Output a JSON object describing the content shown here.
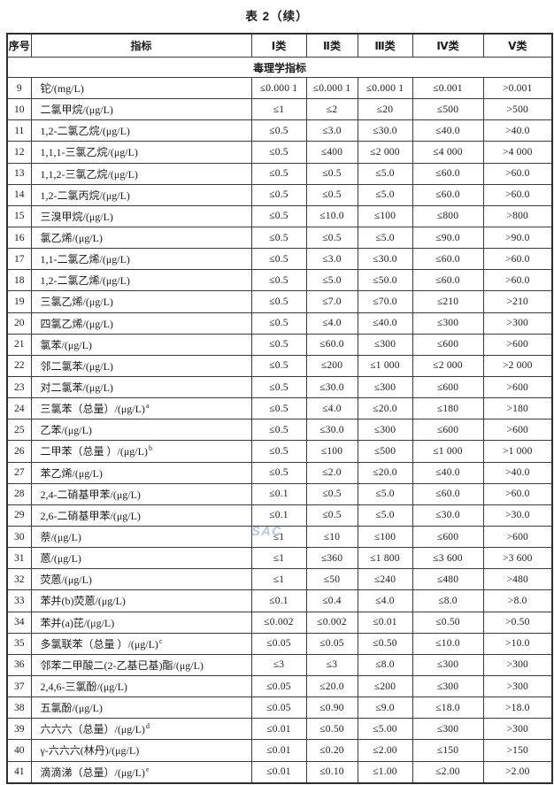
{
  "title": "表 2（续）",
  "watermark": "SAC",
  "table": {
    "headers": [
      "序号",
      "指标",
      "Ⅰ类",
      "Ⅱ类",
      "Ⅲ类",
      "Ⅳ类",
      "Ⅴ类"
    ],
    "section": "毒理学指标",
    "rows": [
      {
        "no": "9",
        "indicator": "铊/(mg/L)",
        "sup": "",
        "values": [
          "≤0.000 1",
          "≤0.000 1",
          "≤0.000 1",
          "≤0.001",
          ">0.001"
        ]
      },
      {
        "no": "10",
        "indicator": "二氯甲烷/(μg/L)",
        "sup": "",
        "values": [
          "≤1",
          "≤2",
          "≤20",
          "≤500",
          ">500"
        ]
      },
      {
        "no": "11",
        "indicator": "1,2-二氯乙烷/(μg/L)",
        "sup": "",
        "values": [
          "≤0.5",
          "≤3.0",
          "≤30.0",
          "≤40.0",
          ">40.0"
        ]
      },
      {
        "no": "12",
        "indicator": "1,1,1-三氯乙烷/(μg/L)",
        "sup": "",
        "values": [
          "≤0.5",
          "≤400",
          "≤2 000",
          "≤4 000",
          ">4 000"
        ]
      },
      {
        "no": "13",
        "indicator": "1,1,2-三氯乙烷/(μg/L)",
        "sup": "",
        "values": [
          "≤0.5",
          "≤0.5",
          "≤5.0",
          "≤60.0",
          ">60.0"
        ]
      },
      {
        "no": "14",
        "indicator": "1,2-二氯丙烷/(μg/L)",
        "sup": "",
        "values": [
          "≤0.5",
          "≤0.5",
          "≤5.0",
          "≤60.0",
          ">60.0"
        ]
      },
      {
        "no": "15",
        "indicator": "三溴甲烷/(μg/L)",
        "sup": "",
        "values": [
          "≤0.5",
          "≤10.0",
          "≤100",
          "≤800",
          ">800"
        ]
      },
      {
        "no": "16",
        "indicator": "氯乙烯/(μg/L)",
        "sup": "",
        "values": [
          "≤0.5",
          "≤0.5",
          "≤5.0",
          "≤90.0",
          ">90.0"
        ]
      },
      {
        "no": "17",
        "indicator": "1,1-二氯乙烯/(μg/L)",
        "sup": "",
        "values": [
          "≤0.5",
          "≤3.0",
          "≤30.0",
          "≤60.0",
          ">60.0"
        ]
      },
      {
        "no": "18",
        "indicator": "1,2-二氯乙烯/(μg/L)",
        "sup": "",
        "values": [
          "≤0.5",
          "≤5.0",
          "≤50.0",
          "≤60.0",
          ">60.0"
        ]
      },
      {
        "no": "19",
        "indicator": "三氯乙烯/(μg/L)",
        "sup": "",
        "values": [
          "≤0.5",
          "≤7.0",
          "≤70.0",
          "≤210",
          ">210"
        ]
      },
      {
        "no": "20",
        "indicator": "四氯乙烯/(μg/L)",
        "sup": "",
        "values": [
          "≤0.5",
          "≤4.0",
          "≤40.0",
          "≤300",
          ">300"
        ]
      },
      {
        "no": "21",
        "indicator": "氯苯/(μg/L)",
        "sup": "",
        "values": [
          "≤0.5",
          "≤60.0",
          "≤300",
          "≤600",
          ">600"
        ]
      },
      {
        "no": "22",
        "indicator": "邻二氯苯/(μg/L)",
        "sup": "",
        "values": [
          "≤0.5",
          "≤200",
          "≤1 000",
          "≤2 000",
          ">2 000"
        ]
      },
      {
        "no": "23",
        "indicator": "对二氯苯/(μg/L)",
        "sup": "",
        "values": [
          "≤0.5",
          "≤30.0",
          "≤300",
          "≤600",
          ">600"
        ]
      },
      {
        "no": "24",
        "indicator": "三氯苯（总量）/(μg/L)",
        "sup": "a",
        "values": [
          "≤0.5",
          "≤4.0",
          "≤20.0",
          "≤180",
          ">180"
        ]
      },
      {
        "no": "25",
        "indicator": "乙苯/(μg/L)",
        "sup": "",
        "values": [
          "≤0.5",
          "≤30.0",
          "≤300",
          "≤600",
          ">600"
        ]
      },
      {
        "no": "26",
        "indicator": "二甲苯（总量 ）/(μg/L)",
        "sup": "b",
        "values": [
          "≤0.5",
          "≤100",
          "≤500",
          "≤1 000",
          ">1 000"
        ]
      },
      {
        "no": "27",
        "indicator": "苯乙烯/(μg/L)",
        "sup": "",
        "values": [
          "≤0.5",
          "≤2.0",
          "≤20.0",
          "≤40.0",
          ">40.0"
        ]
      },
      {
        "no": "28",
        "indicator": "2,4-二硝基甲苯/(μg/L)",
        "sup": "",
        "values": [
          "≤0.1",
          "≤0.5",
          "≤5.0",
          "≤60.0",
          ">60.0"
        ]
      },
      {
        "no": "29",
        "indicator": "2,6-二硝基甲苯/(μg/L)",
        "sup": "",
        "values": [
          "≤0.1",
          "≤0.5",
          "≤5.0",
          "≤30.0",
          ">30.0"
        ]
      },
      {
        "no": "30",
        "indicator": "萘/(μg/L)",
        "sup": "",
        "values": [
          "≤1",
          "≤10",
          "≤100",
          "≤600",
          ">600"
        ]
      },
      {
        "no": "31",
        "indicator": "蒽/(μg/L)",
        "sup": "",
        "values": [
          "≤1",
          "≤360",
          "≤1 800",
          "≤3 600",
          ">3 600"
        ]
      },
      {
        "no": "32",
        "indicator": "荧蒽/(μg/L)",
        "sup": "",
        "values": [
          "≤1",
          "≤50",
          "≤240",
          "≤480",
          ">480"
        ]
      },
      {
        "no": "33",
        "indicator": "苯并(b)荧蒽/(μg/L)",
        "sup": "",
        "values": [
          "≤0.1",
          "≤0.4",
          "≤4.0",
          "≤8.0",
          ">8.0"
        ]
      },
      {
        "no": "34",
        "indicator": "苯并(a)芘/(μg/L)",
        "sup": "",
        "values": [
          "≤0.002",
          "≤0.002",
          "≤0.01",
          "≤0.50",
          ">0.50"
        ]
      },
      {
        "no": "35",
        "indicator": "多氯联苯（总量 ）/(μg/L)",
        "sup": "c",
        "values": [
          "≤0.05",
          "≤0.05",
          "≤0.50",
          "≤10.0",
          ">10.0"
        ]
      },
      {
        "no": "36",
        "indicator": "邻苯二甲酸二(2-乙基已基)酯/(μg/L)",
        "sup": "",
        "values": [
          "≤3",
          "≤3",
          "≤8.0",
          "≤300",
          ">300"
        ]
      },
      {
        "no": "37",
        "indicator": "2,4,6-三氯酚/(μg/L)",
        "sup": "",
        "values": [
          "≤0.05",
          "≤20.0",
          "≤200",
          "≤300",
          ">300"
        ]
      },
      {
        "no": "38",
        "indicator": "五氯酚/(μg/L)",
        "sup": "",
        "values": [
          "≤0.05",
          "≤0.90",
          "≤9.0",
          "≤18.0",
          ">18.0"
        ]
      },
      {
        "no": "39",
        "indicator": "六六六（总量）/(μg/L)",
        "sup": "d",
        "values": [
          "≤0.01",
          "≤0.50",
          "≤5.00",
          "≤300",
          ">300"
        ]
      },
      {
        "no": "40",
        "indicator": "γ-六六六(林丹)/(μg/L)",
        "sup": "",
        "values": [
          "≤0.01",
          "≤0.20",
          "≤2.00",
          "≤150",
          ">150"
        ]
      },
      {
        "no": "41",
        "indicator": "滴滴涕（总量）/(μg/L)",
        "sup": "e",
        "values": [
          "≤0.01",
          "≤0.10",
          "≤1.00",
          "≤2.00",
          ">2.00"
        ]
      }
    ]
  }
}
